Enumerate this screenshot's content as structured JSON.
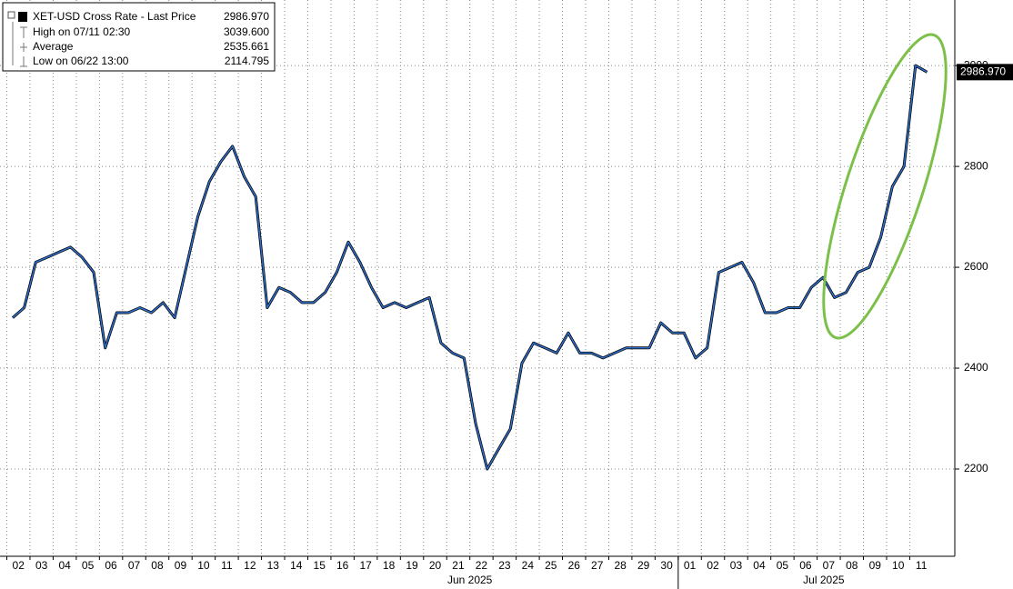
{
  "chart_data": {
    "type": "line",
    "legend": {
      "title": "XET-USD Cross Rate - Last Price",
      "last_price": "2986.970",
      "rows": [
        {
          "label": "High on 07/11 02:30",
          "value": "3039.600"
        },
        {
          "label": "Average",
          "value": "2535.661"
        },
        {
          "label": "Low on 06/22 13:00",
          "value": "2114.795"
        }
      ]
    },
    "categories": [
      "02",
      "03",
      "04",
      "05",
      "06",
      "07",
      "08",
      "09",
      "10",
      "11",
      "12",
      "13",
      "14",
      "15",
      "16",
      "17",
      "18",
      "19",
      "20",
      "21",
      "22",
      "23",
      "24",
      "25",
      "26",
      "27",
      "28",
      "29",
      "30",
      "01",
      "02",
      "03",
      "04",
      "05",
      "06",
      "07",
      "08",
      "09",
      "10",
      "11"
    ],
    "months": [
      "Jun 2025",
      "Jul 2025"
    ],
    "series": [
      {
        "name": "XET-USD Cross Rate",
        "color": "#2f6fcc",
        "values": [
          [
            2500,
            2520
          ],
          [
            2610,
            2620
          ],
          [
            2630,
            2640
          ],
          [
            2620,
            2590
          ],
          [
            2440,
            2510
          ],
          [
            2510,
            2520
          ],
          [
            2510,
            2530
          ],
          [
            2500,
            2600
          ],
          [
            2700,
            2770
          ],
          [
            2810,
            2840
          ],
          [
            2780,
            2740
          ],
          [
            2520,
            2560
          ],
          [
            2550,
            2530
          ],
          [
            2530,
            2550
          ],
          [
            2590,
            2650
          ],
          [
            2610,
            2560
          ],
          [
            2520,
            2530
          ],
          [
            2520,
            2530
          ],
          [
            2540,
            2450
          ],
          [
            2430,
            2420
          ],
          [
            2290,
            2200
          ],
          [
            2240,
            2280
          ],
          [
            2410,
            2450
          ],
          [
            2440,
            2430
          ],
          [
            2470,
            2430
          ],
          [
            2430,
            2420
          ],
          [
            2430,
            2440
          ],
          [
            2440,
            2440
          ],
          [
            2490,
            2470
          ],
          [
            2470,
            2420
          ],
          [
            2440,
            2590
          ],
          [
            2600,
            2610
          ],
          [
            2570,
            2510
          ],
          [
            2510,
            2520
          ],
          [
            2520,
            2560
          ],
          [
            2580,
            2540
          ],
          [
            2550,
            2590
          ],
          [
            2600,
            2660
          ],
          [
            2760,
            2800
          ],
          [
            3000,
            2987
          ]
        ]
      }
    ],
    "ylim": [
      2027,
      3130
    ],
    "yticks": [
      2200,
      2400,
      2600,
      2800,
      3000
    ],
    "grid": true
  }
}
